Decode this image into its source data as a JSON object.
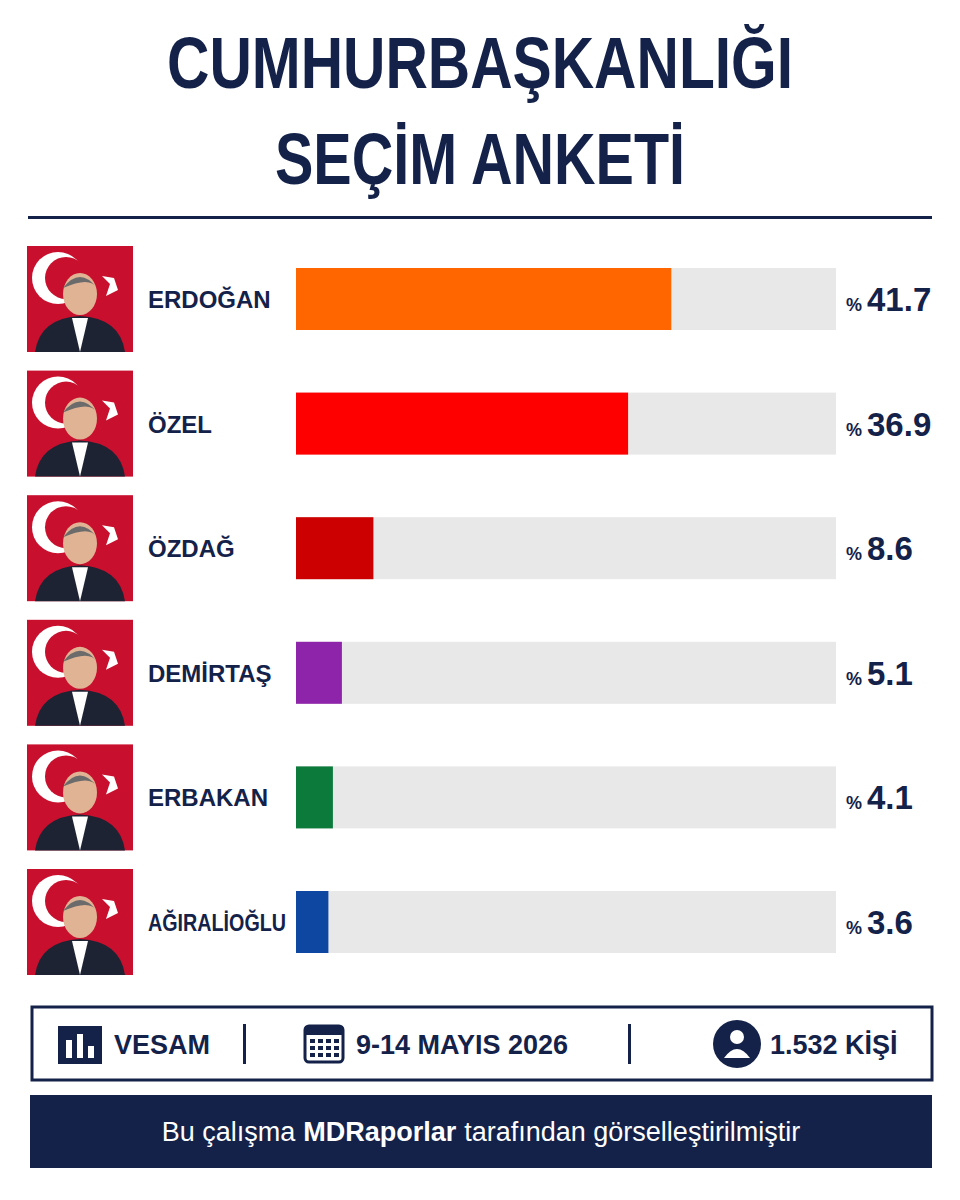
{
  "chart_data": {
    "type": "bar",
    "orientation": "horizontal",
    "title": "CUMHURBAŞKANLIĞI SEÇİM ANKETİ",
    "categories": [
      "ERDOĞAN",
      "ÖZEL",
      "ÖZDAĞ",
      "DEMİRTAŞ",
      "ERBAKAN",
      "AĞIRALİOĞLU"
    ],
    "values": [
      41.7,
      36.9,
      8.6,
      5.1,
      4.1,
      3.6
    ],
    "value_labels": [
      "% 41.7",
      "% 36.9",
      "% 8.6",
      "% 5.1",
      "% 4.1",
      "% 3.6"
    ],
    "colors": [
      "#ff6600",
      "#ff0000",
      "#cc0000",
      "#8e24aa",
      "#0b7a3b",
      "#0d47a1"
    ],
    "xlim": [
      0,
      60
    ],
    "data_labels": true,
    "tick_labels": false,
    "grid": false,
    "annotations": {
      "source": "VESAM",
      "date": "9-14 MAYIS 2026",
      "sample": "1.532 KİŞİ",
      "credit": [
        "Bu çalışma",
        "MDRaporlar",
        "tarafından görselleştirilmiştir"
      ]
    }
  }
}
